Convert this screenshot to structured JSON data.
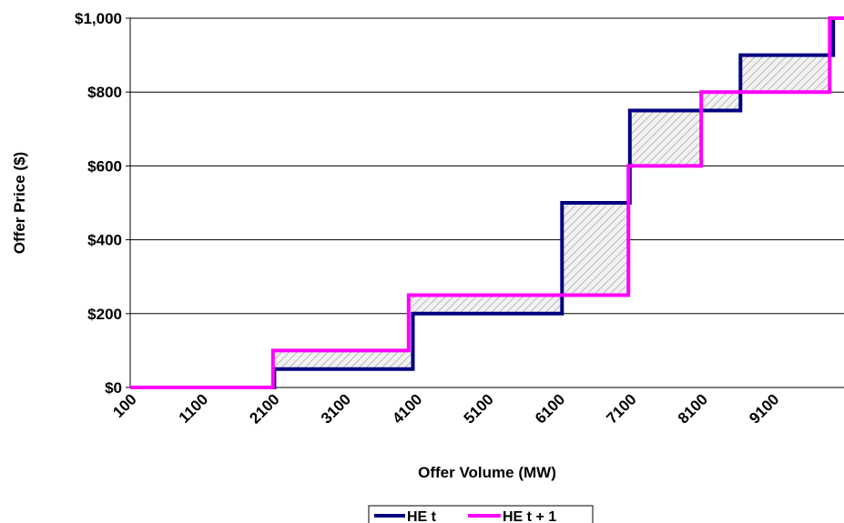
{
  "chart_data": {
    "type": "line",
    "title": "",
    "xlabel": "Offer Volume (MW)",
    "ylabel": "Offer Price ($)",
    "x_ticks": [
      "100",
      "1100",
      "2100",
      "3100",
      "4100",
      "5100",
      "6100",
      "7100",
      "8100",
      "9100"
    ],
    "y_ticks": [
      "$0",
      "$200",
      "$400",
      "$600",
      "$800",
      "$1,000"
    ],
    "xlim": [
      100,
      10100
    ],
    "ylim": [
      0,
      1000
    ],
    "grid": "horizontal",
    "legend_position": "bottom",
    "series": [
      {
        "name": "HE t",
        "color": "#000080",
        "step_points": [
          [
            100,
            0
          ],
          [
            2120,
            0
          ],
          [
            2120,
            50
          ],
          [
            4060,
            50
          ],
          [
            4060,
            200
          ],
          [
            6150,
            200
          ],
          [
            6150,
            500
          ],
          [
            7100,
            500
          ],
          [
            7100,
            750
          ],
          [
            8650,
            750
          ],
          [
            8650,
            900
          ],
          [
            9950,
            900
          ],
          [
            9950,
            1000
          ],
          [
            10100,
            1000
          ]
        ]
      },
      {
        "name": "HE t + 1",
        "color": "#ff00ff",
        "step_points": [
          [
            100,
            0
          ],
          [
            2100,
            0
          ],
          [
            2100,
            100
          ],
          [
            4000,
            100
          ],
          [
            4000,
            250
          ],
          [
            7080,
            250
          ],
          [
            7080,
            600
          ],
          [
            8100,
            600
          ],
          [
            8100,
            800
          ],
          [
            9900,
            800
          ],
          [
            9900,
            1000
          ],
          [
            10100,
            1000
          ]
        ]
      }
    ],
    "shaded_region": "hatched area between HE t and HE t + 1",
    "shade_color": "#c0c0c0"
  }
}
